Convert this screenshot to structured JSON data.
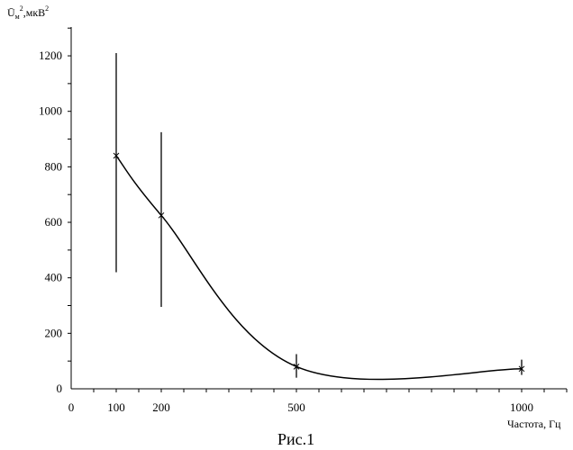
{
  "chart_data": {
    "type": "line",
    "title": "",
    "caption": "Рис.1",
    "ylabel": {
      "base": "Ū",
      "sub": "м",
      "sup": "2",
      "units": ",мкВ",
      "units_sup": "2"
    },
    "xlabel": "Частота, Гц",
    "xlim": [
      0,
      1100
    ],
    "ylim": [
      0,
      1300
    ],
    "x_ticks": [
      0,
      100,
      200,
      500,
      1000
    ],
    "y_ticks": [
      0,
      200,
      400,
      600,
      800,
      1000,
      1200
    ],
    "x_tick_labels": [
      "0",
      "100",
      "200",
      "500",
      "1000"
    ],
    "y_tick_labels": [
      "0",
      "200",
      "400",
      "600",
      "800",
      "1000",
      "1200"
    ],
    "grid": false,
    "series": [
      {
        "x": [
          100,
          200,
          500,
          1000
        ],
        "y": [
          840,
          625,
          80,
          72
        ],
        "error_low": [
          420,
          295,
          40,
          50
        ],
        "error_high": [
          1210,
          925,
          125,
          105
        ]
      }
    ]
  }
}
